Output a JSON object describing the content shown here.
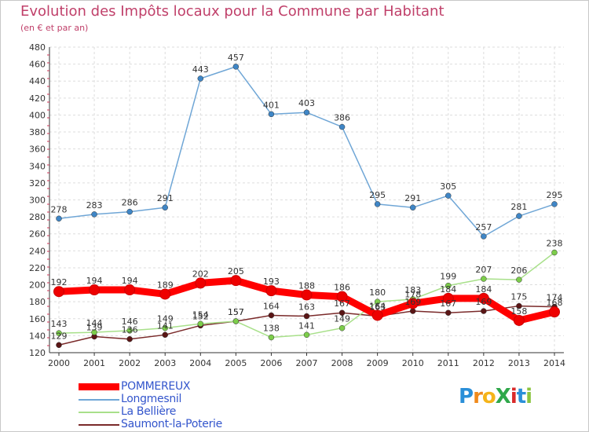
{
  "chart_data": {
    "type": "line",
    "title": "Evolution des Impôts locaux pour la Commune par Habitant",
    "subtitle": "(en € et par an)",
    "categories": [
      "2000",
      "2001",
      "2002",
      "2003",
      "2004",
      "2005",
      "2006",
      "2007",
      "2008",
      "2009",
      "2010",
      "2011",
      "2012",
      "2013",
      "2014"
    ],
    "ylim": [
      120,
      480
    ],
    "yticks": [
      120,
      140,
      160,
      180,
      200,
      220,
      240,
      260,
      280,
      300,
      320,
      340,
      360,
      380,
      400,
      420,
      440,
      460,
      480
    ],
    "grid": true,
    "legend_placement": "bottom-left",
    "series": [
      {
        "name": "POMMEREUX",
        "color": "#ff0000",
        "marker": "#ee0000",
        "values": [
          192,
          194,
          194,
          189,
          202,
          205,
          193,
          188,
          186,
          164,
          178,
          184,
          184,
          158,
          168
        ]
      },
      {
        "name": "Longmesnil",
        "color": "#6fa6d6",
        "marker": "#3f86c6",
        "values": [
          278,
          283,
          286,
          291,
          443,
          457,
          401,
          403,
          386,
          295,
          291,
          305,
          257,
          281,
          295
        ]
      },
      {
        "name": "La Bellière",
        "color": "#a8e08a",
        "marker": "#7ccd4a",
        "values": [
          143,
          144,
          146,
          149,
          154,
          157,
          138,
          141,
          149,
          180,
          183,
          199,
          207,
          206,
          238
        ]
      },
      {
        "name": "Saumont-la-Poterie",
        "color": "#7a2a2a",
        "marker": "#5a1515",
        "values": [
          129,
          139,
          136,
          141,
          152,
          157,
          164,
          163,
          167,
          163,
          169,
          167,
          169,
          175,
          174
        ]
      }
    ]
  },
  "logo": {
    "text": "ProXiti"
  }
}
